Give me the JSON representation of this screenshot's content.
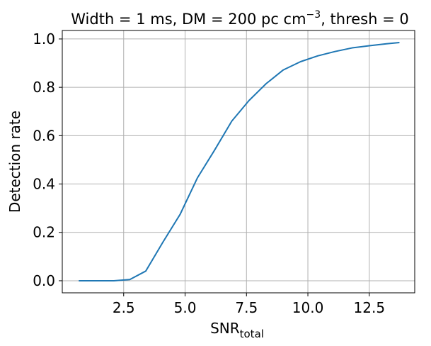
{
  "chart_data": {
    "type": "line",
    "title": {
      "prefix": "Width = 1 ms, DM = 200 pc cm",
      "superscript": "−3",
      "suffix": ", thresh = 0"
    },
    "xlabel": {
      "main": "SNR",
      "subscript": "total"
    },
    "ylabel": "Detection rate",
    "xlim": [
      0.0,
      14.35
    ],
    "ylim": [
      -0.05,
      1.035
    ],
    "x_ticks": [
      2.5,
      5.0,
      7.5,
      10.0,
      12.5
    ],
    "x_tick_labels": [
      "2.5",
      "5.0",
      "7.5",
      "10.0",
      "12.5"
    ],
    "y_ticks": [
      0.0,
      0.2,
      0.4,
      0.6,
      0.8,
      1.0
    ],
    "y_tick_labels": [
      "0.0",
      "0.2",
      "0.4",
      "0.6",
      "0.8",
      "1.0"
    ],
    "grid": true,
    "legend": "none",
    "series": [
      {
        "color": "#1f77b4",
        "x": [
          0.7,
          1.4,
          2.1,
          2.75,
          3.4,
          4.1,
          4.8,
          5.5,
          6.2,
          6.9,
          7.6,
          8.3,
          9.0,
          9.7,
          10.4,
          11.1,
          11.8,
          12.5,
          13.2,
          13.7
        ],
        "y": [
          0.0,
          0.0,
          0.0,
          0.005,
          0.04,
          0.16,
          0.275,
          0.425,
          0.54,
          0.66,
          0.745,
          0.815,
          0.872,
          0.906,
          0.93,
          0.948,
          0.963,
          0.972,
          0.98,
          0.985
        ]
      }
    ]
  }
}
